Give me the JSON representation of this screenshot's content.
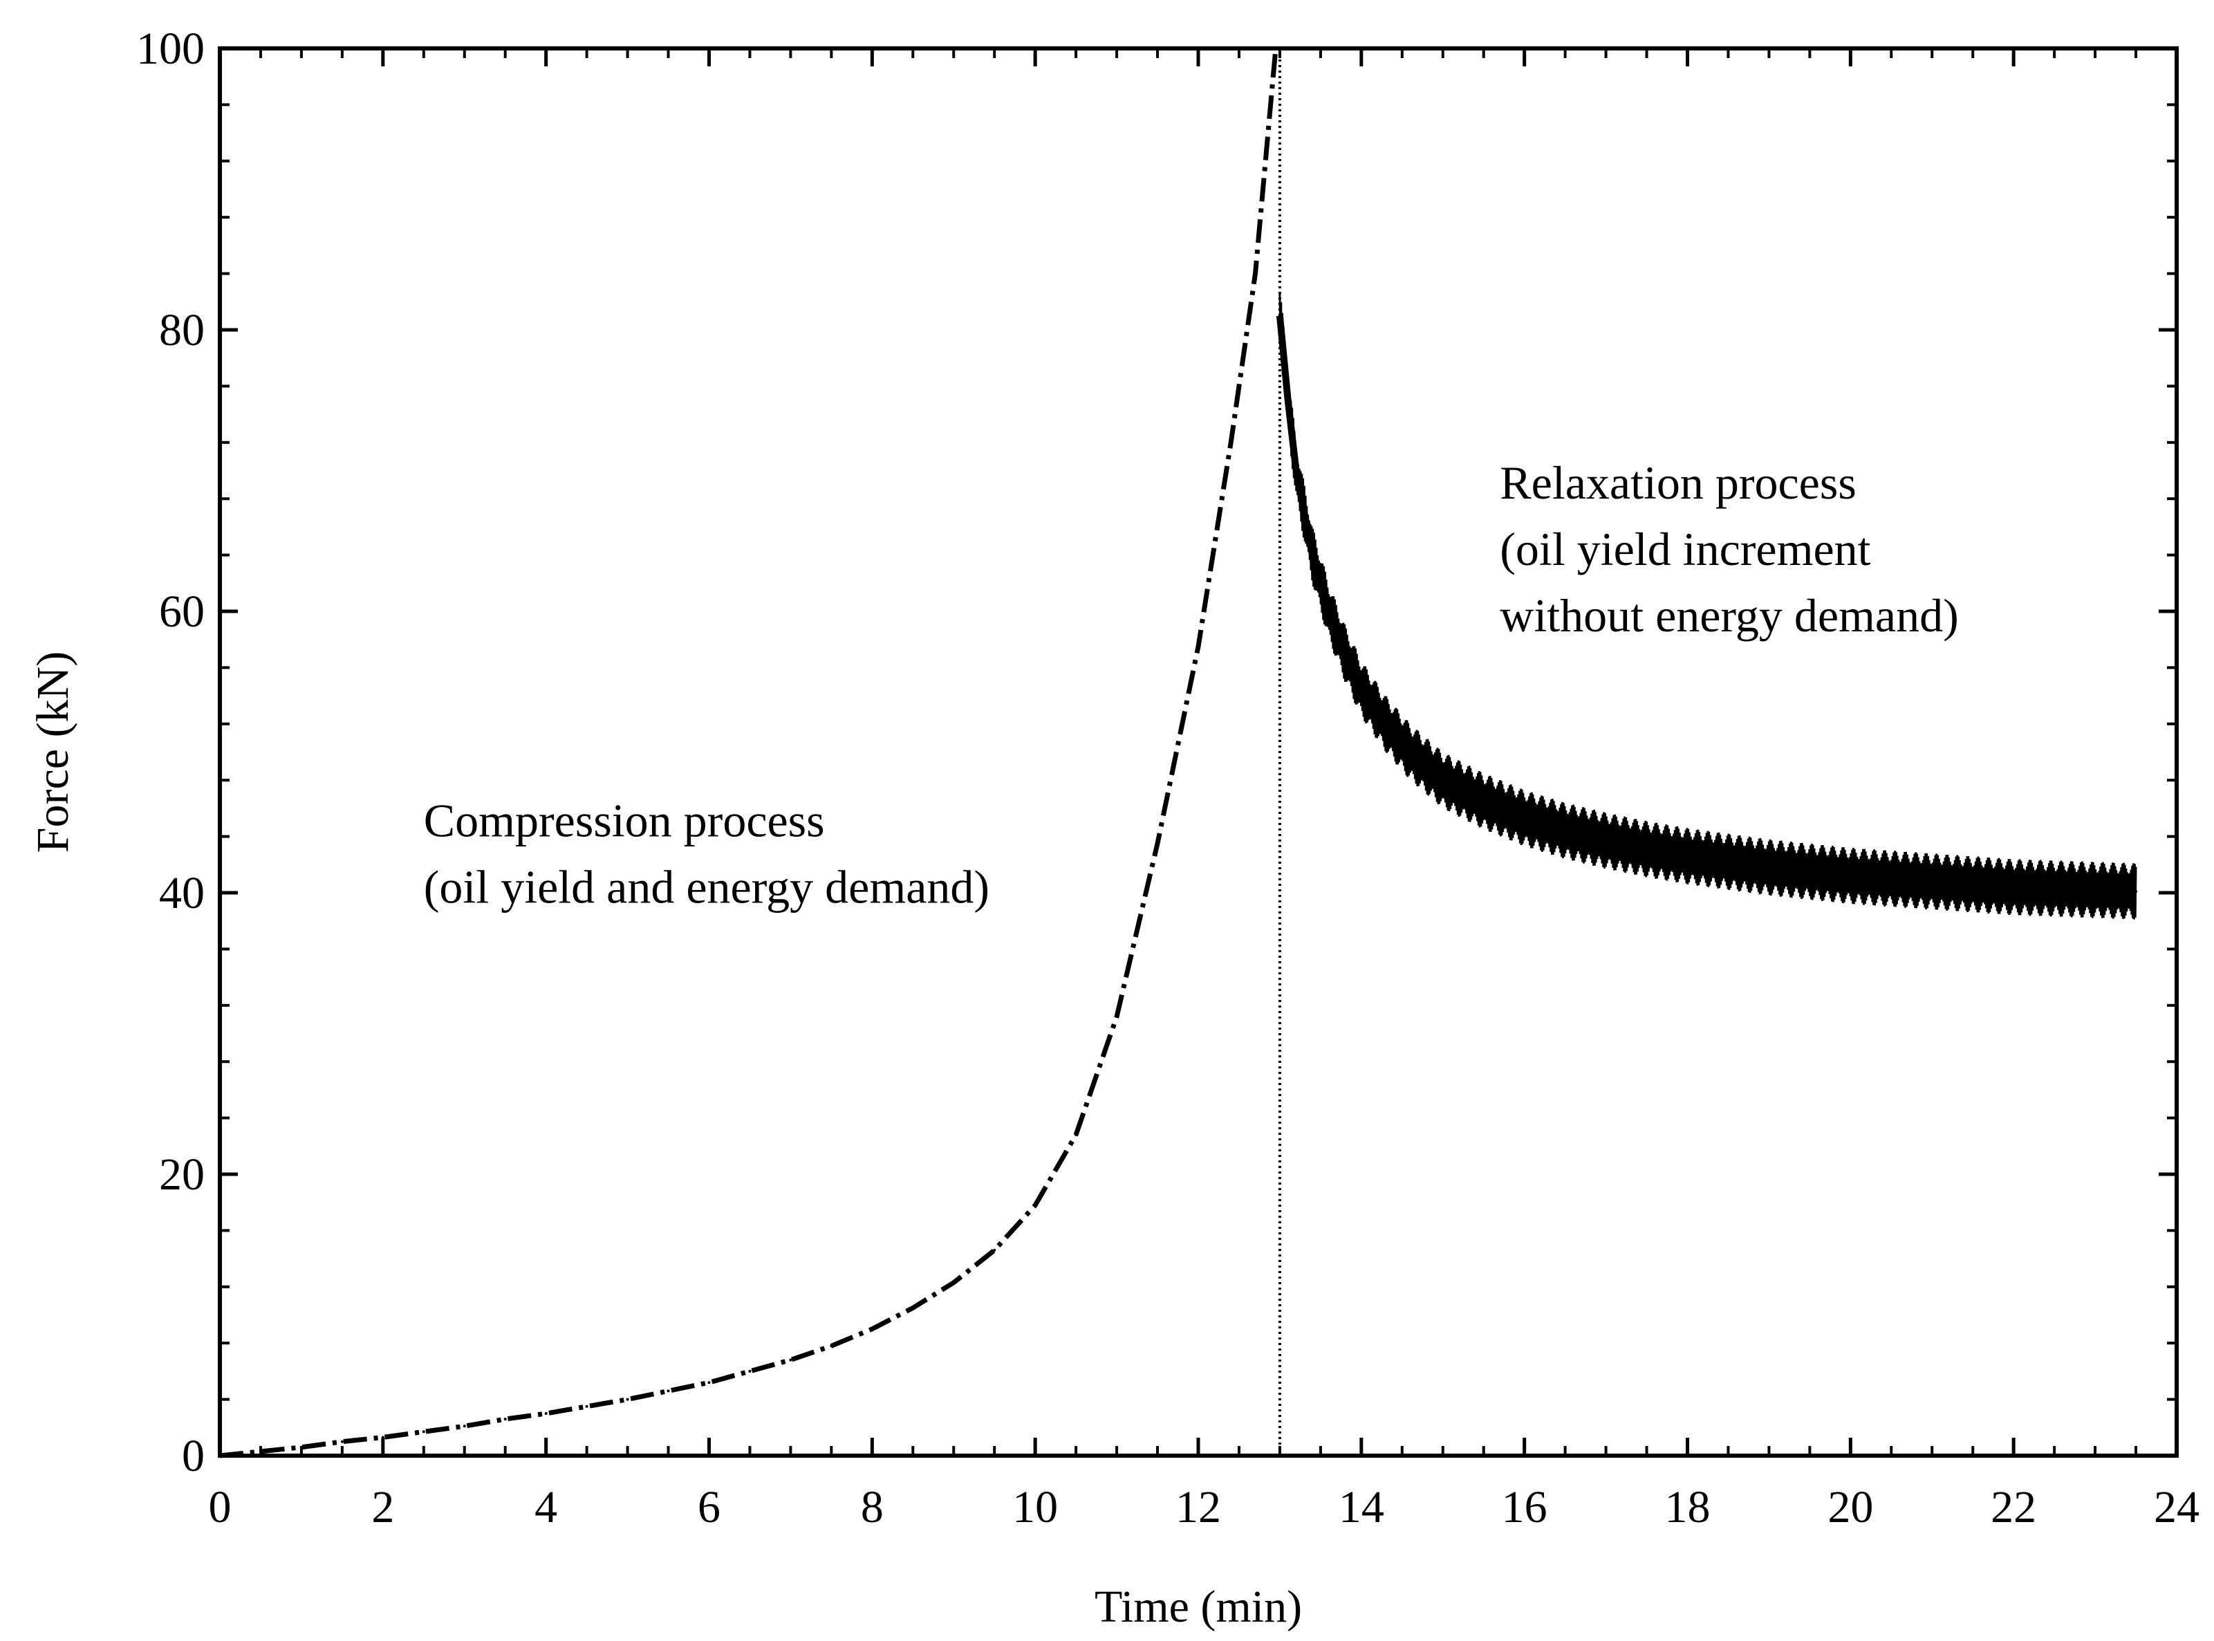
{
  "chart_data": {
    "type": "line",
    "title": "",
    "xlabel": "Time (min)",
    "ylabel": "Force (kN)",
    "xlim": [
      0,
      24
    ],
    "ylim": [
      0,
      100
    ],
    "xticks": [
      0,
      2,
      4,
      6,
      8,
      10,
      12,
      14,
      16,
      18,
      20,
      22,
      24
    ],
    "yticks": [
      0,
      20,
      40,
      60,
      80,
      100
    ],
    "grid": false,
    "colors": {
      "line": "#000000",
      "background": "#ffffff"
    },
    "divider": {
      "x": 13.0,
      "style": "dotted"
    },
    "series": [
      {
        "name": "Compression process",
        "style": "dash-dot",
        "x": [
          0.0,
          0.5,
          1.0,
          1.5,
          2.0,
          2.5,
          3.0,
          3.5,
          4.0,
          4.5,
          5.0,
          5.5,
          6.0,
          6.5,
          7.0,
          7.5,
          8.0,
          8.5,
          9.0,
          9.5,
          10.0,
          10.5,
          11.0,
          11.5,
          12.0,
          12.4,
          12.7,
          12.95
        ],
        "y": [
          0.0,
          0.3,
          0.6,
          1.0,
          1.3,
          1.7,
          2.1,
          2.6,
          3.0,
          3.5,
          4.0,
          4.6,
          5.2,
          6.0,
          6.8,
          7.8,
          9.0,
          10.5,
          12.3,
          14.6,
          17.8,
          22.8,
          31.2,
          43.5,
          57.5,
          72.0,
          84.0,
          100.0
        ]
      },
      {
        "name": "Relaxation process",
        "style": "dense-band",
        "x": [
          13.0,
          13.1,
          13.2,
          13.4,
          13.6,
          13.8,
          14.0,
          14.3,
          14.6,
          15.0,
          15.5,
          16.0,
          16.5,
          17.0,
          17.5,
          18.0,
          18.5,
          19.0,
          19.5,
          20.0,
          20.5,
          21.0,
          21.5,
          22.0,
          22.5,
          23.0,
          23.5
        ],
        "y": [
          81.0,
          75.0,
          70.0,
          64.0,
          60.0,
          57.0,
          54.5,
          52.0,
          50.0,
          48.0,
          46.5,
          45.3,
          44.4,
          43.7,
          43.1,
          42.6,
          42.2,
          41.8,
          41.5,
          41.2,
          41.0,
          40.8,
          40.6,
          40.4,
          40.3,
          40.2,
          40.1
        ]
      }
    ],
    "annotations": [
      {
        "lines": [
          "Compression process",
          "(oil yield and energy demand)"
        ],
        "at": [
          2.5,
          44.0
        ]
      },
      {
        "lines": [
          "Relaxation process",
          "(oil yield increment",
          "without energy demand)"
        ],
        "at": [
          15.7,
          68.0
        ]
      }
    ]
  }
}
